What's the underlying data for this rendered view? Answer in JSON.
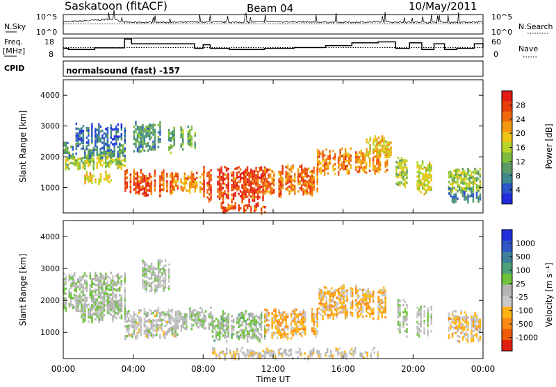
{
  "header": {
    "station": "Saskatoon (fitACF)",
    "beam": "Beam 04",
    "date": "10/May/2011"
  },
  "top_panels": {
    "nsky_label": "N.Sky",
    "nsky_ticks": [
      "10^5",
      "10^0"
    ],
    "nsearch_label": "N.Search",
    "nsearch_ticks": [
      "10^5",
      "10^0"
    ],
    "freq_label": "Freq.",
    "freq_unit": "[MHz]",
    "freq_ticks": [
      "18",
      "8"
    ],
    "nave_label": "Nave",
    "nave_ticks": [
      "60",
      "0"
    ],
    "cpid_label": "CPID",
    "cpid_value": "normalsound (fast) -157"
  },
  "colors": {
    "power_scale": [
      "#1f2ddc",
      "#2d56c8",
      "#3f8a8c",
      "#5a9a64",
      "#7dbc3c",
      "#b8d62a",
      "#f0c414",
      "#f59a10",
      "#f06a0c",
      "#e83c0a",
      "#e41a12"
    ],
    "velocity_scale": [
      "#1f2ddc",
      "#2f56c3",
      "#3f7f9c",
      "#4ea07a",
      "#6ec23c",
      "#b4b4b4",
      "#c8c8c8",
      "#ffb414",
      "#fa8a14",
      "#ee5a0a",
      "#e21e12"
    ]
  },
  "chart_data": [
    {
      "type": "line",
      "title": "N.Sky / N.Search",
      "x_unit": "UT hour",
      "xlim": [
        0,
        24
      ],
      "ylim": [
        0,
        5
      ],
      "y_scale": "log10",
      "series": [
        {
          "name": "N.Sky",
          "x": [
            0,
            1,
            2,
            3,
            3.3,
            4,
            6,
            8,
            10,
            12,
            14,
            16,
            18,
            20,
            22,
            24
          ],
          "values": [
            3.2,
            3.3,
            3.6,
            3.9,
            3.1,
            3.0,
            3.0,
            3.1,
            3.0,
            3.2,
            3.1,
            3.0,
            3.1,
            3.0,
            3.0,
            3.1
          ]
        },
        {
          "name": "N.Search",
          "x": [
            0,
            2,
            4,
            6,
            8,
            10,
            12,
            14,
            16,
            18,
            20,
            22,
            24
          ],
          "values": [
            2.6,
            2.6,
            2.6,
            2.6,
            2.6,
            2.6,
            2.6,
            2.6,
            2.6,
            2.6,
            2.6,
            2.6,
            2.6
          ]
        }
      ]
    },
    {
      "type": "line",
      "title": "Freq. / Nave",
      "x_unit": "UT hour",
      "xlim": [
        0,
        24
      ],
      "ylim": [
        8,
        18
      ],
      "series": [
        {
          "name": "Freq.",
          "x": [
            0,
            0.3,
            1.8,
            3.5,
            3.9,
            7.5,
            8.0,
            8.4,
            9.5,
            11.5,
            13.2,
            15.0,
            16.5,
            18.0,
            19.0,
            19.8,
            20.5,
            21.2,
            21.8,
            22.5,
            23.5,
            24
          ],
          "values": [
            12.5,
            12.0,
            12.8,
            17.5,
            15.0,
            12.5,
            14.5,
            12.5,
            12.0,
            12.5,
            13.0,
            14.0,
            15.5,
            16.0,
            12.5,
            15.5,
            12.0,
            15.0,
            12.0,
            12.5,
            15.0,
            13.5
          ]
        },
        {
          "name": "Nave",
          "x": [
            0,
            24
          ],
          "values": [
            13,
            13
          ]
        }
      ]
    },
    {
      "type": "heatmap",
      "title": "",
      "xlabel": "",
      "ylabel": "Slant Range [km]",
      "colorbar_label": "Power [dB]",
      "colorbar_ticks": [
        "28",
        "24",
        "20",
        "16",
        "12",
        "8",
        "4"
      ],
      "x_unit": "UT hour",
      "y_unit": "km",
      "xlim": [
        0,
        24
      ],
      "ylim": [
        180,
        4500
      ],
      "yticks": [
        "1000",
        "2000",
        "3000",
        "4000"
      ],
      "value_range": [
        0,
        30
      ],
      "features": [
        {
          "x": [
            0.0,
            3.5
          ],
          "y": [
            1700,
            2050
          ],
          "value": 14
        },
        {
          "x": [
            0.0,
            3.5
          ],
          "y": [
            2050,
            2400
          ],
          "value": 7
        },
        {
          "x": [
            0.5,
            3.5
          ],
          "y": [
            2400,
            3000
          ],
          "value": 4
        },
        {
          "x": [
            1.2,
            2.7
          ],
          "y": [
            1200,
            1500
          ],
          "value": 18
        },
        {
          "x": [
            3.5,
            6.2
          ],
          "y": [
            850,
            1500
          ],
          "value": 26
        },
        {
          "x": [
            6.2,
            8.0
          ],
          "y": [
            950,
            1450
          ],
          "value": 22
        },
        {
          "x": [
            8.0,
            11.5
          ],
          "y": [
            600,
            1600
          ],
          "value": 27
        },
        {
          "x": [
            9.0,
            11.5
          ],
          "y": [
            250,
            450
          ],
          "value": 26
        },
        {
          "x": [
            11.5,
            14.5
          ],
          "y": [
            850,
            1650
          ],
          "value": 24
        },
        {
          "x": [
            14.5,
            18.5
          ],
          "y": [
            1500,
            2200
          ],
          "value": 22
        },
        {
          "x": [
            17.0,
            18.8
          ],
          "y": [
            2050,
            2600
          ],
          "value": 18
        },
        {
          "x": [
            4.0,
            5.5
          ],
          "y": [
            2300,
            3100
          ],
          "value": 8
        },
        {
          "x": [
            6.0,
            7.5
          ],
          "y": [
            2200,
            2900
          ],
          "value": 10
        },
        {
          "x": [
            19.0,
            19.6
          ],
          "y": [
            1100,
            2000
          ],
          "value": 14
        },
        {
          "x": [
            20.2,
            21.0
          ],
          "y": [
            900,
            1800
          ],
          "value": 16
        },
        {
          "x": [
            22.0,
            23.8
          ],
          "y": [
            900,
            1600
          ],
          "value": 14
        },
        {
          "x": [
            22.0,
            23.8
          ],
          "y": [
            600,
            900
          ],
          "value": 6
        }
      ]
    },
    {
      "type": "heatmap",
      "title": "",
      "xlabel": "Time UT",
      "ylabel": "Slant Range [km]",
      "colorbar_label": "Velocity [m s⁻¹]",
      "colorbar_ticks": [
        "1000",
        "500",
        "100",
        "25",
        "-25",
        "-100",
        "-500",
        "-1000"
      ],
      "x_unit": "UT hour",
      "y_unit": "km",
      "xlim": [
        0,
        24
      ],
      "ylim": [
        180,
        4500
      ],
      "yticks": [
        "1000",
        "2000",
        "3000",
        "4000"
      ],
      "xticks": [
        "00:00",
        "04:00",
        "08:00",
        "12:00",
        "16:00",
        "20:00",
        "00:00"
      ],
      "value_range": [
        -1000,
        1000
      ],
      "features": [
        {
          "x": [
            0.0,
            3.5
          ],
          "y": [
            1700,
            2800
          ],
          "value": 0
        },
        {
          "x": [
            1.0,
            3.5
          ],
          "y": [
            1400,
            2000
          ],
          "value": 30
        },
        {
          "x": [
            3.5,
            6.5
          ],
          "y": [
            900,
            1700
          ],
          "value": -80
        },
        {
          "x": [
            6.5,
            8.5
          ],
          "y": [
            1100,
            1700
          ],
          "value": 0
        },
        {
          "x": [
            8.5,
            11.5
          ],
          "y": [
            800,
            1600
          ],
          "value": 80
        },
        {
          "x": [
            11.5,
            14.5
          ],
          "y": [
            900,
            1700
          ],
          "value": -400
        },
        {
          "x": [
            14.5,
            18.5
          ],
          "y": [
            1500,
            2400
          ],
          "value": -400
        },
        {
          "x": [
            4.5,
            6.0
          ],
          "y": [
            2300,
            3200
          ],
          "value": 0
        },
        {
          "x": [
            19.0,
            19.6
          ],
          "y": [
            1000,
            2000
          ],
          "value": 0
        },
        {
          "x": [
            20.2,
            21.0
          ],
          "y": [
            900,
            1800
          ],
          "value": 0
        },
        {
          "x": [
            22.0,
            23.8
          ],
          "y": [
            800,
            1600
          ],
          "value": -300
        },
        {
          "x": [
            8.5,
            18.0
          ],
          "y": [
            250,
            450
          ],
          "value": -150
        }
      ]
    }
  ]
}
